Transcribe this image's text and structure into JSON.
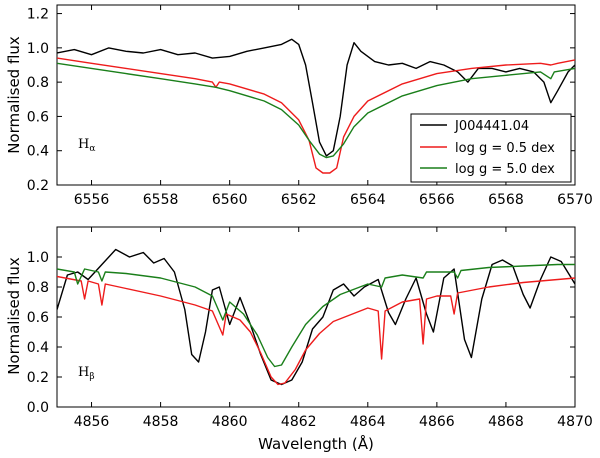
{
  "chart_data": [
    {
      "type": "line",
      "panel": "top",
      "annotation": {
        "main": "H",
        "sub": "α"
      },
      "xlabel": "",
      "ylabel": "Normalised flux",
      "xlim": [
        6555,
        6570
      ],
      "ylim": [
        0.2,
        1.25
      ],
      "xticks": [
        6556,
        6558,
        6560,
        6562,
        6564,
        6566,
        6568,
        6570
      ],
      "yticks": [
        0.2,
        0.4,
        0.6,
        0.8,
        1.0,
        1.2
      ],
      "yticklabels": [
        "0.2",
        "0.4",
        "0.6",
        "0.8",
        "1.0",
        "1.2"
      ],
      "legend": {
        "position": "lower-right",
        "entries": [
          {
            "label": "J004441.04",
            "color": "#000000"
          },
          {
            "label": "log g = 0.5 dex",
            "color": "#ee1c1c"
          },
          {
            "label": "log g = 5.0 dex",
            "color": "#1a7f1a"
          }
        ]
      },
      "series": [
        {
          "name": "J004441.04",
          "color": "#000000",
          "points": [
            [
              6555.0,
              0.97
            ],
            [
              6555.5,
              0.99
            ],
            [
              6556.0,
              0.96
            ],
            [
              6556.5,
              1.0
            ],
            [
              6557.0,
              0.98
            ],
            [
              6557.5,
              0.97
            ],
            [
              6558.0,
              0.99
            ],
            [
              6558.5,
              0.96
            ],
            [
              6559.0,
              0.97
            ],
            [
              6559.5,
              0.94
            ],
            [
              6560.0,
              0.95
            ],
            [
              6560.5,
              0.98
            ],
            [
              6561.0,
              1.0
            ],
            [
              6561.5,
              1.02
            ],
            [
              6561.8,
              1.05
            ],
            [
              6562.0,
              1.02
            ],
            [
              6562.2,
              0.9
            ],
            [
              6562.4,
              0.68
            ],
            [
              6562.6,
              0.45
            ],
            [
              6562.8,
              0.37
            ],
            [
              6563.0,
              0.4
            ],
            [
              6563.2,
              0.6
            ],
            [
              6563.4,
              0.9
            ],
            [
              6563.6,
              1.03
            ],
            [
              6563.8,
              0.98
            ],
            [
              6564.2,
              0.92
            ],
            [
              6564.6,
              0.9
            ],
            [
              6565.0,
              0.91
            ],
            [
              6565.4,
              0.88
            ],
            [
              6565.8,
              0.92
            ],
            [
              6566.2,
              0.9
            ],
            [
              6566.6,
              0.86
            ],
            [
              6566.9,
              0.8
            ],
            [
              6567.2,
              0.88
            ],
            [
              6567.6,
              0.88
            ],
            [
              6568.0,
              0.86
            ],
            [
              6568.4,
              0.88
            ],
            [
              6568.8,
              0.86
            ],
            [
              6569.1,
              0.8
            ],
            [
              6569.3,
              0.68
            ],
            [
              6569.5,
              0.75
            ],
            [
              6569.8,
              0.86
            ],
            [
              6570.0,
              0.9
            ]
          ]
        },
        {
          "name": "log g = 0.5 dex",
          "color": "#ee1c1c",
          "points": [
            [
              6555.0,
              0.94
            ],
            [
              6556.0,
              0.91
            ],
            [
              6557.0,
              0.88
            ],
            [
              6558.0,
              0.85
            ],
            [
              6559.0,
              0.82
            ],
            [
              6559.5,
              0.8
            ],
            [
              6559.6,
              0.77
            ],
            [
              6559.7,
              0.8
            ],
            [
              6560.0,
              0.79
            ],
            [
              6561.0,
              0.73
            ],
            [
              6561.5,
              0.68
            ],
            [
              6562.0,
              0.58
            ],
            [
              6562.3,
              0.46
            ],
            [
              6562.5,
              0.3
            ],
            [
              6562.7,
              0.27
            ],
            [
              6562.9,
              0.27
            ],
            [
              6563.1,
              0.3
            ],
            [
              6563.3,
              0.48
            ],
            [
              6563.6,
              0.6
            ],
            [
              6564.0,
              0.69
            ],
            [
              6565.0,
              0.79
            ],
            [
              6566.0,
              0.85
            ],
            [
              6567.0,
              0.88
            ],
            [
              6568.0,
              0.9
            ],
            [
              6569.0,
              0.91
            ],
            [
              6569.3,
              0.9
            ],
            [
              6569.5,
              0.91
            ],
            [
              6570.0,
              0.93
            ]
          ]
        },
        {
          "name": "log g = 5.0 dex",
          "color": "#1a7f1a",
          "points": [
            [
              6555.0,
              0.91
            ],
            [
              6556.0,
              0.88
            ],
            [
              6557.0,
              0.85
            ],
            [
              6558.0,
              0.82
            ],
            [
              6559.0,
              0.79
            ],
            [
              6559.6,
              0.77
            ],
            [
              6560.0,
              0.75
            ],
            [
              6561.0,
              0.69
            ],
            [
              6561.5,
              0.64
            ],
            [
              6562.0,
              0.55
            ],
            [
              6562.3,
              0.46
            ],
            [
              6562.6,
              0.38
            ],
            [
              6562.8,
              0.36
            ],
            [
              6563.0,
              0.37
            ],
            [
              6563.3,
              0.44
            ],
            [
              6563.6,
              0.54
            ],
            [
              6564.0,
              0.62
            ],
            [
              6565.0,
              0.72
            ],
            [
              6566.0,
              0.78
            ],
            [
              6567.0,
              0.82
            ],
            [
              6568.0,
              0.84
            ],
            [
              6569.0,
              0.86
            ],
            [
              6569.3,
              0.82
            ],
            [
              6569.4,
              0.86
            ],
            [
              6570.0,
              0.88
            ]
          ]
        }
      ]
    },
    {
      "type": "line",
      "panel": "bottom",
      "annotation": {
        "main": "H",
        "sub": "β"
      },
      "xlabel": "Wavelength (Å)",
      "ylabel": "Normalised flux",
      "xlim": [
        4855,
        4870
      ],
      "ylim": [
        0.0,
        1.2
      ],
      "xticks": [
        4856,
        4858,
        4860,
        4862,
        4864,
        4866,
        4868,
        4870
      ],
      "yticks": [
        0.0,
        0.2,
        0.4,
        0.6,
        0.8,
        1.0
      ],
      "yticklabels": [
        "0.0",
        "0.2",
        "0.4",
        "0.6",
        "0.8",
        "1.0"
      ],
      "series": [
        {
          "name": "J004441.04",
          "color": "#000000",
          "points": [
            [
              4855.0,
              0.65
            ],
            [
              4855.3,
              0.88
            ],
            [
              4855.6,
              0.9
            ],
            [
              4855.9,
              0.85
            ],
            [
              4856.3,
              0.95
            ],
            [
              4856.7,
              1.05
            ],
            [
              4857.1,
              1.0
            ],
            [
              4857.5,
              1.03
            ],
            [
              4857.8,
              0.96
            ],
            [
              4858.1,
              0.99
            ],
            [
              4858.4,
              0.9
            ],
            [
              4858.7,
              0.65
            ],
            [
              4858.9,
              0.35
            ],
            [
              4859.1,
              0.3
            ],
            [
              4859.3,
              0.5
            ],
            [
              4859.5,
              0.78
            ],
            [
              4859.7,
              0.8
            ],
            [
              4860.0,
              0.55
            ],
            [
              4860.3,
              0.73
            ],
            [
              4860.6,
              0.55
            ],
            [
              4860.9,
              0.35
            ],
            [
              4861.2,
              0.18
            ],
            [
              4861.5,
              0.15
            ],
            [
              4861.8,
              0.18
            ],
            [
              4862.1,
              0.3
            ],
            [
              4862.4,
              0.52
            ],
            [
              4862.7,
              0.6
            ],
            [
              4863.0,
              0.78
            ],
            [
              4863.3,
              0.82
            ],
            [
              4863.6,
              0.74
            ],
            [
              4863.9,
              0.8
            ],
            [
              4864.3,
              0.85
            ],
            [
              4864.6,
              0.63
            ],
            [
              4864.8,
              0.55
            ],
            [
              4865.1,
              0.72
            ],
            [
              4865.4,
              0.86
            ],
            [
              4865.7,
              0.62
            ],
            [
              4865.9,
              0.5
            ],
            [
              4866.2,
              0.86
            ],
            [
              4866.5,
              0.92
            ],
            [
              4866.8,
              0.45
            ],
            [
              4867.0,
              0.33
            ],
            [
              4867.3,
              0.72
            ],
            [
              4867.6,
              0.95
            ],
            [
              4867.9,
              0.98
            ],
            [
              4868.2,
              0.94
            ],
            [
              4868.5,
              0.75
            ],
            [
              4868.7,
              0.66
            ],
            [
              4869.0,
              0.85
            ],
            [
              4869.3,
              1.0
            ],
            [
              4869.6,
              0.97
            ],
            [
              4870.0,
              0.82
            ]
          ]
        },
        {
          "name": "log g = 0.5 dex",
          "color": "#ee1c1c",
          "points": [
            [
              4855.0,
              0.87
            ],
            [
              4855.7,
              0.84
            ],
            [
              4855.8,
              0.72
            ],
            [
              4855.9,
              0.84
            ],
            [
              4856.2,
              0.82
            ],
            [
              4856.3,
              0.68
            ],
            [
              4856.4,
              0.82
            ],
            [
              4857.0,
              0.79
            ],
            [
              4858.0,
              0.74
            ],
            [
              4859.0,
              0.68
            ],
            [
              4859.5,
              0.64
            ],
            [
              4859.8,
              0.48
            ],
            [
              4859.9,
              0.62
            ],
            [
              4860.3,
              0.58
            ],
            [
              4860.6,
              0.5
            ],
            [
              4860.9,
              0.36
            ],
            [
              4861.2,
              0.2
            ],
            [
              4861.4,
              0.15
            ],
            [
              4861.6,
              0.16
            ],
            [
              4861.9,
              0.25
            ],
            [
              4862.2,
              0.38
            ],
            [
              4862.6,
              0.49
            ],
            [
              4863.0,
              0.57
            ],
            [
              4864.0,
              0.66
            ],
            [
              4864.3,
              0.64
            ],
            [
              4864.4,
              0.32
            ],
            [
              4864.5,
              0.64
            ],
            [
              4865.0,
              0.7
            ],
            [
              4865.5,
              0.72
            ],
            [
              4865.6,
              0.42
            ],
            [
              4865.7,
              0.72
            ],
            [
              4866.0,
              0.74
            ],
            [
              4866.4,
              0.74
            ],
            [
              4866.5,
              0.62
            ],
            [
              4866.6,
              0.76
            ],
            [
              4867.5,
              0.8
            ],
            [
              4868.5,
              0.83
            ],
            [
              4869.5,
              0.85
            ],
            [
              4870.0,
              0.86
            ]
          ]
        },
        {
          "name": "log g = 5.0 dex",
          "color": "#1a7f1a",
          "points": [
            [
              4855.0,
              0.92
            ],
            [
              4855.5,
              0.9
            ],
            [
              4855.6,
              0.82
            ],
            [
              4855.8,
              0.92
            ],
            [
              4856.2,
              0.9
            ],
            [
              4856.3,
              0.84
            ],
            [
              4856.4,
              0.9
            ],
            [
              4857.0,
              0.89
            ],
            [
              4858.0,
              0.86
            ],
            [
              4859.0,
              0.8
            ],
            [
              4859.5,
              0.74
            ],
            [
              4859.8,
              0.58
            ],
            [
              4860.0,
              0.7
            ],
            [
              4860.4,
              0.62
            ],
            [
              4860.8,
              0.48
            ],
            [
              4861.1,
              0.33
            ],
            [
              4861.3,
              0.27
            ],
            [
              4861.5,
              0.28
            ],
            [
              4861.8,
              0.4
            ],
            [
              4862.2,
              0.55
            ],
            [
              4862.7,
              0.67
            ],
            [
              4863.2,
              0.75
            ],
            [
              4864.0,
              0.82
            ],
            [
              4864.4,
              0.8
            ],
            [
              4864.5,
              0.86
            ],
            [
              4865.0,
              0.88
            ],
            [
              4865.6,
              0.86
            ],
            [
              4865.7,
              0.9
            ],
            [
              4866.5,
              0.9
            ],
            [
              4866.6,
              0.86
            ],
            [
              4866.7,
              0.91
            ],
            [
              4867.5,
              0.93
            ],
            [
              4868.5,
              0.94
            ],
            [
              4869.5,
              0.95
            ],
            [
              4870.0,
              0.95
            ]
          ]
        }
      ]
    }
  ]
}
